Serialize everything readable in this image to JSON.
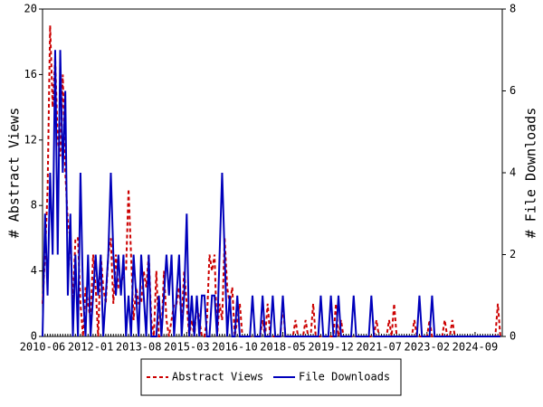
{
  "chart_data": {
    "type": "line",
    "y_label": "# Abstract Views",
    "y2_label": "# File Downloads",
    "categories": [
      "2010-06",
      null,
      null,
      null,
      null,
      null,
      null,
      null,
      null,
      null,
      null,
      null,
      null,
      null,
      null,
      null,
      null,
      null,
      null,
      "2012-01",
      null,
      null,
      null,
      null,
      null,
      null,
      null,
      null,
      null,
      null,
      null,
      null,
      null,
      null,
      null,
      null,
      null,
      null,
      "2013-08",
      null,
      null,
      null,
      null,
      null,
      null,
      null,
      null,
      null,
      null,
      null,
      null,
      null,
      null,
      null,
      null,
      null,
      null,
      "2015-03",
      null,
      null,
      null,
      null,
      null,
      null,
      null,
      null,
      null,
      null,
      null,
      null,
      null,
      null,
      null,
      null,
      null,
      null,
      "2016-10",
      null,
      null,
      null,
      null,
      null,
      null,
      null,
      null,
      null,
      null,
      null,
      null,
      null,
      null,
      null,
      null,
      null,
      null,
      "2018-05",
      null,
      null,
      null,
      null,
      null,
      null,
      null,
      null,
      null,
      null,
      null,
      null,
      null,
      null,
      null,
      null,
      null,
      null,
      "2019-12",
      null,
      null,
      null,
      null,
      null,
      null,
      null,
      null,
      null,
      null,
      null,
      null,
      null,
      null,
      null,
      null,
      null,
      null,
      "2021-07",
      null,
      null,
      null,
      null,
      null,
      null,
      null,
      null,
      null,
      null,
      null,
      null,
      null,
      null,
      null,
      null,
      null,
      null,
      "2023-02",
      null,
      null,
      null,
      null,
      null,
      null,
      null,
      null,
      null,
      null,
      null,
      null,
      null,
      null,
      null,
      null,
      null,
      null,
      "2024-09",
      null,
      null,
      null,
      null,
      null,
      null,
      null,
      null,
      null,
      null
    ],
    "series": [
      {
        "name": "Abstract Views",
        "color": "#cc0000",
        "dash": true,
        "axis": "y",
        "values": [
          2,
          5,
          9,
          19,
          14,
          17,
          12,
          11,
          16,
          10,
          7,
          6,
          2,
          6,
          6,
          2,
          0,
          3,
          2,
          1,
          5,
          3,
          0,
          5,
          3,
          2,
          5,
          6,
          2,
          5,
          3,
          3,
          4,
          4,
          9,
          5,
          1,
          3,
          2,
          2,
          4,
          3,
          5,
          1,
          0,
          4,
          0,
          0,
          4,
          1,
          0,
          1,
          2,
          2,
          3,
          1,
          4,
          2,
          0,
          1,
          0,
          2,
          1,
          0,
          0,
          1,
          5,
          4,
          5,
          0,
          2,
          1,
          6,
          3,
          2,
          3,
          0,
          1,
          2,
          0,
          0,
          0,
          0,
          0,
          0,
          0,
          0,
          1,
          0,
          2,
          0,
          0,
          0,
          0,
          0,
          2,
          0,
          0,
          0,
          0,
          1,
          0,
          0,
          0,
          1,
          0,
          0,
          2,
          0,
          0,
          0,
          0,
          0,
          0,
          0,
          0,
          2,
          0,
          1,
          0,
          0,
          0,
          0,
          0,
          0,
          0,
          0,
          0,
          0,
          0,
          0,
          0,
          1,
          0,
          0,
          0,
          0,
          1,
          0,
          2,
          0,
          0,
          0,
          0,
          0,
          0,
          0,
          1,
          0,
          0,
          0,
          0,
          0,
          1,
          0,
          0,
          0,
          0,
          0,
          1,
          0,
          0,
          1,
          0,
          0,
          0,
          0,
          0,
          0,
          0,
          0,
          0,
          0,
          0,
          0,
          0,
          0,
          0,
          0,
          0,
          2,
          0
        ]
      },
      {
        "name": "File Downloads",
        "color": "#0000bb",
        "dash": false,
        "axis": "y2",
        "values": [
          0,
          3,
          1,
          4,
          2,
          7,
          2,
          7,
          4,
          6,
          1,
          3,
          0,
          2,
          0,
          4,
          1,
          0,
          2,
          0,
          1,
          2,
          1,
          2,
          0,
          1,
          2,
          4,
          2,
          1,
          2,
          1,
          2,
          0,
          1,
          0,
          2,
          1,
          0,
          2,
          1,
          0,
          2,
          0,
          0,
          0,
          1,
          0,
          1,
          2,
          1,
          2,
          0,
          1,
          2,
          0,
          1,
          3,
          0,
          1,
          0,
          1,
          0,
          1,
          1,
          0,
          0,
          1,
          1,
          0,
          2,
          4,
          2,
          0,
          1,
          0,
          0,
          1,
          0,
          0,
          0,
          0,
          0,
          1,
          0,
          0,
          0,
          1,
          0,
          0,
          0,
          1,
          0,
          0,
          0,
          1,
          0,
          0,
          0,
          0,
          0,
          0,
          0,
          0,
          0,
          0,
          0,
          0,
          0,
          0,
          1,
          0,
          0,
          0,
          1,
          0,
          0,
          1,
          0,
          0,
          0,
          0,
          0,
          1,
          0,
          0,
          0,
          0,
          0,
          0,
          1,
          0,
          0,
          0,
          0,
          0,
          0,
          0,
          0,
          0,
          0,
          0,
          0,
          0,
          0,
          0,
          0,
          0,
          0,
          1,
          0,
          0,
          0,
          0,
          1,
          0,
          0,
          0,
          0,
          0,
          0,
          0,
          0,
          0,
          0,
          0,
          0,
          0,
          0,
          0,
          0,
          0,
          0,
          0,
          0,
          0,
          0,
          0,
          0,
          0,
          0,
          0
        ]
      }
    ],
    "ylim": [
      0,
      20
    ],
    "yticks": [
      0,
      4,
      8,
      12,
      16,
      20
    ],
    "y2lim": [
      0,
      8
    ],
    "y2ticks": [
      0,
      2,
      4,
      6,
      8
    ],
    "grid": false,
    "legend": "bottom"
  }
}
